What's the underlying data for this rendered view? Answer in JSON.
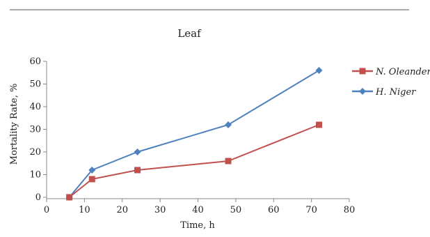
{
  "chart_data": {
    "type": "line",
    "title": "Leaf",
    "xlabel": "Time, h",
    "ylabel": "Mortality Rate, %",
    "xlim": [
      0,
      80
    ],
    "ylim": [
      0,
      60
    ],
    "xticks": [
      "0",
      "10",
      "20",
      "30",
      "40",
      "50",
      "60",
      "70",
      "80"
    ],
    "yticks": [
      "0",
      "10",
      "20",
      "30",
      "40",
      "50",
      "60"
    ],
    "x": [
      6,
      12,
      24,
      48,
      72
    ],
    "grid": false,
    "legend_position": "right",
    "series": [
      {
        "name": "N. Oleander",
        "values": [
          0,
          8,
          12,
          16,
          32
        ],
        "color": "#c0504d",
        "marker": "square"
      },
      {
        "name": "H. Niger",
        "values": [
          0,
          12,
          20,
          32,
          56
        ],
        "color": "#4f81bd",
        "marker": "diamond"
      }
    ]
  }
}
